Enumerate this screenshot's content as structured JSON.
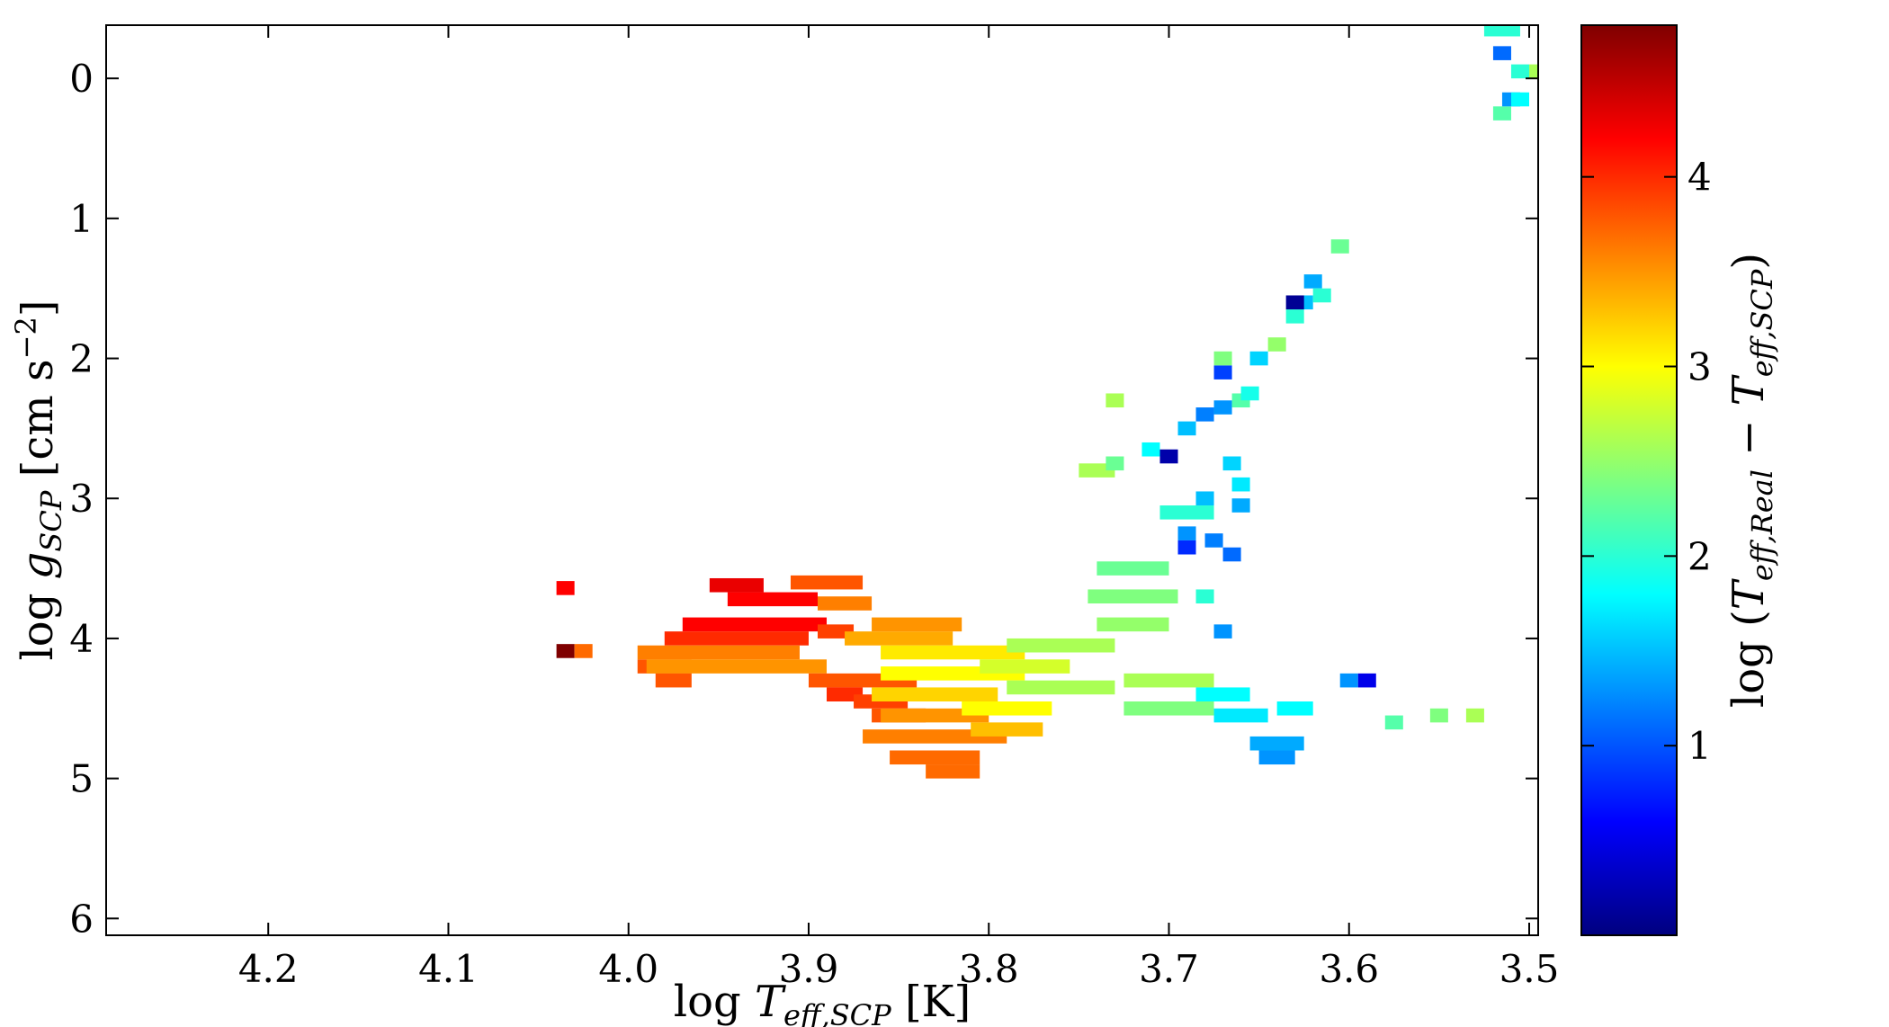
{
  "chart_data": {
    "type": "heatmap",
    "xlabel": {
      "prefix": "log ",
      "var": "T",
      "sub": "eff,SCP",
      "unit": " [K]"
    },
    "ylabel": {
      "prefix": "log ",
      "var": "g",
      "sub": "SCP",
      "unit": " [cm  s",
      "unit_sup": "−2",
      "unit_end": "]"
    },
    "colorbar_label": {
      "prefix": "log (",
      "var1": "T",
      "sub1": "eff,Real",
      "minus": " − ",
      "var2": "T",
      "sub2": "eff,SCP",
      "suffix": ")"
    },
    "xlim": [
      4.29,
      3.495
    ],
    "ylim": [
      6.12,
      -0.38
    ],
    "x_ticks": [
      "4.2",
      "4.1",
      "4.0",
      "3.9",
      "3.8",
      "3.7",
      "3.6",
      "3.5"
    ],
    "y_ticks": [
      "0",
      "1",
      "2",
      "3",
      "4",
      "5",
      "6"
    ],
    "colorbar_range": [
      0.0,
      4.8
    ],
    "colorbar_ticks": [
      "1",
      "2",
      "3",
      "4"
    ],
    "colormap": [
      "#00007f",
      "#0000ff",
      "#007fff",
      "#00ffff",
      "#7fff7f",
      "#ffff00",
      "#ff7f00",
      "#ff0000",
      "#7f0000"
    ],
    "bins": [
      {
        "x": 4.035,
        "y": 3.64,
        "v": 4.2
      },
      {
        "x": 4.035,
        "y": 4.09,
        "v": 4.8
      },
      {
        "x": 4.025,
        "y": 4.09,
        "v": 3.7
      },
      {
        "x": 3.98,
        "y": 4.2,
        "v": 3.8,
        "w": 0.03
      },
      {
        "x": 3.975,
        "y": 4.3,
        "v": 3.8,
        "w": 0.02
      },
      {
        "x": 3.94,
        "y": 3.62,
        "v": 4.3,
        "w": 0.03
      },
      {
        "x": 3.92,
        "y": 3.72,
        "v": 4.2,
        "w": 0.05
      },
      {
        "x": 3.93,
        "y": 3.9,
        "v": 4.2,
        "w": 0.08
      },
      {
        "x": 3.94,
        "y": 4.0,
        "v": 4.0,
        "w": 0.08
      },
      {
        "x": 3.95,
        "y": 4.1,
        "v": 3.6,
        "w": 0.09
      },
      {
        "x": 3.94,
        "y": 4.2,
        "v": 3.5,
        "w": 0.1
      },
      {
        "x": 3.89,
        "y": 3.6,
        "v": 3.8,
        "w": 0.04
      },
      {
        "x": 3.88,
        "y": 3.75,
        "v": 3.6,
        "w": 0.03
      },
      {
        "x": 3.885,
        "y": 3.95,
        "v": 3.9,
        "w": 0.02
      },
      {
        "x": 3.87,
        "y": 4.3,
        "v": 3.8,
        "w": 0.06
      },
      {
        "x": 3.88,
        "y": 4.4,
        "v": 4.0,
        "w": 0.02
      },
      {
        "x": 3.86,
        "y": 4.45,
        "v": 3.9,
        "w": 0.03
      },
      {
        "x": 3.85,
        "y": 4.55,
        "v": 3.8,
        "w": 0.03
      },
      {
        "x": 3.85,
        "y": 4.0,
        "v": 3.4,
        "w": 0.06
      },
      {
        "x": 3.84,
        "y": 3.9,
        "v": 3.5,
        "w": 0.05
      },
      {
        "x": 3.82,
        "y": 4.1,
        "v": 3.1,
        "w": 0.08
      },
      {
        "x": 3.82,
        "y": 4.25,
        "v": 3.0,
        "w": 0.08
      },
      {
        "x": 3.83,
        "y": 4.4,
        "v": 3.2,
        "w": 0.07
      },
      {
        "x": 3.83,
        "y": 4.55,
        "v": 3.5,
        "w": 0.06
      },
      {
        "x": 3.83,
        "y": 4.7,
        "v": 3.6,
        "w": 0.08
      },
      {
        "x": 3.83,
        "y": 4.85,
        "v": 3.7,
        "w": 0.05
      },
      {
        "x": 3.82,
        "y": 4.95,
        "v": 3.7,
        "w": 0.03
      },
      {
        "x": 3.76,
        "y": 4.05,
        "v": 2.6,
        "w": 0.06
      },
      {
        "x": 3.78,
        "y": 4.2,
        "v": 2.8,
        "w": 0.05
      },
      {
        "x": 3.76,
        "y": 4.35,
        "v": 2.6,
        "w": 0.06
      },
      {
        "x": 3.79,
        "y": 4.5,
        "v": 3.0,
        "w": 0.05
      },
      {
        "x": 3.79,
        "y": 4.65,
        "v": 3.3,
        "w": 0.04
      },
      {
        "x": 3.72,
        "y": 3.5,
        "v": 2.3,
        "w": 0.04
      },
      {
        "x": 3.72,
        "y": 3.7,
        "v": 2.4,
        "w": 0.05
      },
      {
        "x": 3.72,
        "y": 3.9,
        "v": 2.5,
        "w": 0.04
      },
      {
        "x": 3.7,
        "y": 4.3,
        "v": 2.6,
        "w": 0.05
      },
      {
        "x": 3.7,
        "y": 4.5,
        "v": 2.4,
        "w": 0.05
      },
      {
        "x": 3.67,
        "y": 4.4,
        "v": 1.8,
        "w": 0.03
      },
      {
        "x": 3.66,
        "y": 4.55,
        "v": 1.7,
        "w": 0.03
      },
      {
        "x": 3.64,
        "y": 4.75,
        "v": 1.4,
        "w": 0.03
      },
      {
        "x": 3.64,
        "y": 4.85,
        "v": 1.3,
        "w": 0.02
      },
      {
        "x": 3.63,
        "y": 4.5,
        "v": 1.8,
        "w": 0.02
      },
      {
        "x": 3.6,
        "y": 4.3,
        "v": 1.3
      },
      {
        "x": 3.59,
        "y": 4.3,
        "v": 0.5
      },
      {
        "x": 3.575,
        "y": 4.6,
        "v": 2.2
      },
      {
        "x": 3.55,
        "y": 4.55,
        "v": 2.4
      },
      {
        "x": 3.53,
        "y": 4.55,
        "v": 2.6
      },
      {
        "x": 3.69,
        "y": 3.1,
        "v": 2.0,
        "w": 0.03
      },
      {
        "x": 3.69,
        "y": 3.25,
        "v": 1.3
      },
      {
        "x": 3.69,
        "y": 3.35,
        "v": 0.8
      },
      {
        "x": 3.68,
        "y": 3.0,
        "v": 1.5
      },
      {
        "x": 3.675,
        "y": 3.3,
        "v": 1.2
      },
      {
        "x": 3.665,
        "y": 3.4,
        "v": 1.1
      },
      {
        "x": 3.7,
        "y": 2.7,
        "v": 0.2
      },
      {
        "x": 3.71,
        "y": 2.65,
        "v": 1.8
      },
      {
        "x": 3.69,
        "y": 2.5,
        "v": 1.5
      },
      {
        "x": 3.68,
        "y": 2.4,
        "v": 1.2
      },
      {
        "x": 3.67,
        "y": 2.35,
        "v": 1.3
      },
      {
        "x": 3.67,
        "y": 2.1,
        "v": 0.9
      },
      {
        "x": 3.67,
        "y": 2.0,
        "v": 2.4
      },
      {
        "x": 3.66,
        "y": 2.3,
        "v": 2.2
      },
      {
        "x": 3.65,
        "y": 2.0,
        "v": 1.6
      },
      {
        "x": 3.655,
        "y": 2.25,
        "v": 1.9
      },
      {
        "x": 3.73,
        "y": 2.3,
        "v": 2.6
      },
      {
        "x": 3.74,
        "y": 2.8,
        "v": 2.6,
        "w": 0.02
      },
      {
        "x": 3.73,
        "y": 2.75,
        "v": 2.3
      },
      {
        "x": 3.66,
        "y": 2.9,
        "v": 1.7
      },
      {
        "x": 3.665,
        "y": 2.75,
        "v": 1.6
      },
      {
        "x": 3.66,
        "y": 3.05,
        "v": 1.4
      },
      {
        "x": 3.68,
        "y": 3.7,
        "v": 2.0
      },
      {
        "x": 3.67,
        "y": 3.95,
        "v": 1.3
      },
      {
        "x": 3.64,
        "y": 1.9,
        "v": 2.5
      },
      {
        "x": 3.63,
        "y": 1.7,
        "v": 2.0
      },
      {
        "x": 3.625,
        "y": 1.6,
        "v": 1.5
      },
      {
        "x": 3.63,
        "y": 1.6,
        "v": 0.1
      },
      {
        "x": 3.62,
        "y": 1.45,
        "v": 1.4
      },
      {
        "x": 3.615,
        "y": 1.55,
        "v": 2.0
      },
      {
        "x": 3.605,
        "y": 1.2,
        "v": 2.3
      },
      {
        "x": 3.515,
        "y": -0.35,
        "v": 2.0,
        "w": 0.02
      },
      {
        "x": 3.515,
        "y": 0.25,
        "v": 2.2
      },
      {
        "x": 3.515,
        "y": -0.18,
        "v": 1.1
      },
      {
        "x": 3.505,
        "y": -0.05,
        "v": 2.0
      },
      {
        "x": 3.495,
        "y": -0.05,
        "v": 2.6
      },
      {
        "x": 3.51,
        "y": 0.15,
        "v": 1.3
      },
      {
        "x": 3.505,
        "y": 0.15,
        "v": 1.8
      }
    ]
  }
}
